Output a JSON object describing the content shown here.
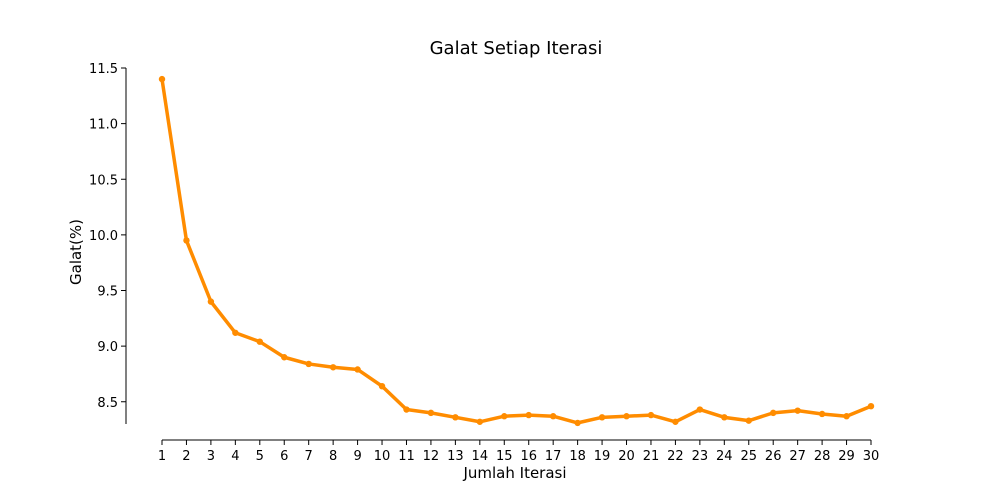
{
  "chart_data": {
    "type": "line",
    "title": "Galat Setiap Iterasi",
    "xlabel": "Jumlah Iterasi",
    "ylabel": "Galat(%)",
    "x": [
      1,
      2,
      3,
      4,
      5,
      6,
      7,
      8,
      9,
      10,
      11,
      12,
      13,
      14,
      15,
      16,
      17,
      18,
      19,
      20,
      21,
      22,
      23,
      24,
      25,
      26,
      27,
      28,
      29,
      30
    ],
    "x_ticks": [
      "1",
      "2",
      "3",
      "4",
      "5",
      "6",
      "7",
      "8",
      "9",
      "10",
      "11",
      "12",
      "13",
      "14",
      "15",
      "16",
      "17",
      "18",
      "19",
      "20",
      "21",
      "22",
      "23",
      "24",
      "25",
      "26",
      "27",
      "28",
      "29",
      "30"
    ],
    "y_ticks": [
      "8.5",
      "9.0",
      "9.5",
      "10.0",
      "10.5",
      "11.0",
      "11.5"
    ],
    "series": [
      {
        "color": "#ff8c00",
        "values": [
          11.4,
          9.95,
          9.4,
          9.12,
          9.04,
          8.9,
          8.84,
          8.81,
          8.79,
          8.64,
          8.43,
          8.4,
          8.36,
          8.32,
          8.37,
          8.38,
          8.37,
          8.31,
          8.36,
          8.37,
          8.38,
          8.32,
          8.43,
          8.36,
          8.33,
          8.4,
          8.42,
          8.39,
          8.37,
          8.46
        ]
      }
    ],
    "xlim": [
      1,
      30
    ],
    "ylim": [
      8.3,
      11.5
    ],
    "grid": false,
    "legend": "none"
  }
}
